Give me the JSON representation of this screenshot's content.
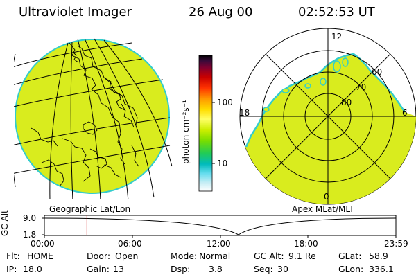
{
  "header": {
    "title": "Ultraviolet Imager",
    "date": "26 Aug 00",
    "time": "02:52:53 UT"
  },
  "panels": {
    "left_label": "Geographic Lat/Lon",
    "right_label": "Apex MLat/MLT"
  },
  "polar_plot": {
    "mlt_labels": [
      "12",
      "18",
      "6",
      "0"
    ],
    "lat_labels": [
      "60",
      "70",
      "80"
    ]
  },
  "colorbar": {
    "title": "photon cm⁻²s⁻¹",
    "ticks": [
      "100",
      "10"
    ],
    "scale": "log",
    "colors": [
      "#000000",
      "#3a0a3a",
      "#800030",
      "#c80000",
      "#ff3300",
      "#ff9900",
      "#ffdd00",
      "#ffff66",
      "#ccee00",
      "#77dd00",
      "#22cc55",
      "#00bbbb",
      "#66ddee",
      "#c8eef5",
      "#ffffff"
    ]
  },
  "timeline": {
    "axis_label": "GC Alt",
    "y_ticks": [
      "9.0",
      "1.8"
    ],
    "x_ticks": [
      "00:00",
      "06:00",
      "12:00",
      "18:00",
      "23:59"
    ],
    "current_time_fraction": 0.121
  },
  "info": {
    "flt_label": "Flt:",
    "flt_value": "HOME",
    "door_label": "Door:",
    "door_value": "Open",
    "mode_label": "Mode:",
    "mode_value": "Normal",
    "gcalt_label": "GC Alt:",
    "gcalt_value": "9.1 Re",
    "glat_label": "GLat:",
    "glat_value": "58.9",
    "ip_label": "IP:",
    "ip_value": "18.0",
    "gain_label": "Gain:",
    "gain_value": "13",
    "dsp_label": "Dsp:",
    "dsp_value": "3.8",
    "seq_label": "Seq:",
    "seq_value": "30",
    "glon_label": "GLon:",
    "glon_value": "336.1"
  },
  "style_colors": {
    "disk_fill": "#d9ec1e",
    "rim": "#33cccc",
    "marker": "#cc0000"
  }
}
